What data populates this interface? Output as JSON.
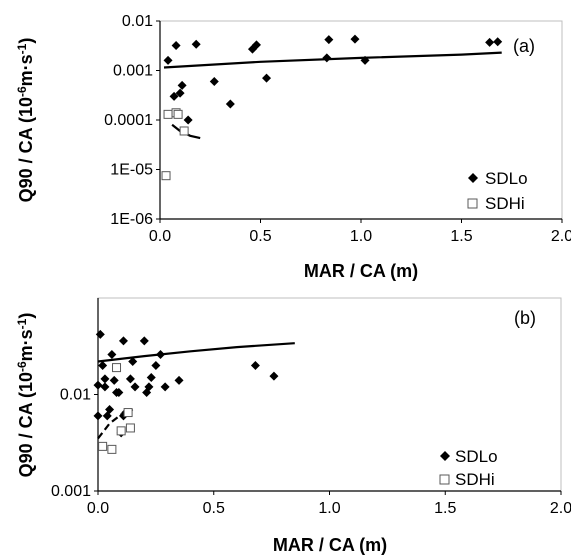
{
  "chart_data": [
    {
      "type": "scatter",
      "panel_label": "(a)",
      "xlabel": "MAR / CA (m)",
      "ylabel": "Q90 / CA (10",
      "ylabel_unit": "-6",
      "ylabel_mid": "m·s",
      "ylabel_exp": "-1",
      "ylabel_close": ")",
      "xlim": [
        0,
        2
      ],
      "ylim": [
        1e-06,
        0.01
      ],
      "yscale": "log",
      "x_ticks": [
        "0.0",
        "0.5",
        "1.0",
        "1.5",
        "2.0"
      ],
      "y_ticks": [
        "1E-06",
        "1E-05",
        "0.0001",
        "0.001",
        "0.01"
      ],
      "legend_position": "bottom-right",
      "series": [
        {
          "name": "SDLo",
          "marker": "diamond",
          "points": [
            [
              0.04,
              0.0016
            ],
            [
              0.07,
              0.0003
            ],
            [
              0.08,
              0.0032
            ],
            [
              0.1,
              0.00035
            ],
            [
              0.11,
              0.0005
            ],
            [
              0.14,
              0.0001
            ],
            [
              0.18,
              0.0034
            ],
            [
              0.27,
              0.0006
            ],
            [
              0.35,
              0.00021
            ],
            [
              0.46,
              0.0027
            ],
            [
              0.48,
              0.0033
            ],
            [
              0.53,
              0.0007
            ],
            [
              0.83,
              0.0018
            ],
            [
              0.84,
              0.0042
            ],
            [
              0.97,
              0.0043
            ],
            [
              1.02,
              0.0016
            ],
            [
              1.64,
              0.0037
            ],
            [
              1.68,
              0.0038
            ]
          ]
        },
        {
          "name": "SDHi",
          "marker": "square",
          "points": [
            [
              0.03,
              7.5e-06
            ],
            [
              0.04,
              0.00013
            ],
            [
              0.08,
              0.00014
            ],
            [
              0.09,
              0.00013
            ],
            [
              0.12,
              6e-05
            ]
          ]
        }
      ],
      "fit_lines": [
        {
          "series": "SDLo",
          "style": "solid",
          "points": [
            [
              0.02,
              0.00115
            ],
            [
              0.5,
              0.0015
            ],
            [
              1.0,
              0.0018
            ],
            [
              1.5,
              0.0021
            ],
            [
              1.7,
              0.0023
            ]
          ]
        },
        {
          "series": "SDHi",
          "style": "solid",
          "points": [
            [
              0.06,
              8e-05
            ],
            [
              0.1,
              6e-05
            ],
            [
              0.15,
              4.8e-05
            ],
            [
              0.2,
              4.3e-05
            ]
          ]
        }
      ]
    },
    {
      "type": "scatter",
      "panel_label": "(b)",
      "xlabel": "MAR / CA (m)",
      "ylabel": "Q90 / CA (10",
      "ylabel_unit": "-6",
      "ylabel_mid": "m·s",
      "ylabel_exp": "-1",
      "ylabel_close": ")",
      "xlim": [
        0,
        2
      ],
      "ylim": [
        0.001,
        0.1
      ],
      "yscale": "log",
      "x_ticks": [
        "0.0",
        "0.5",
        "1.0",
        "1.5",
        "2.0"
      ],
      "y_ticks": [
        "0.001",
        "0.01"
      ],
      "legend_position": "bottom-right",
      "series": [
        {
          "name": "SDLo",
          "marker": "diamond",
          "points": [
            [
              0.0,
              0.0125
            ],
            [
              0.0,
              0.006
            ],
            [
              0.01,
              0.042
            ],
            [
              0.02,
              0.02
            ],
            [
              0.03,
              0.0145
            ],
            [
              0.03,
              0.012
            ],
            [
              0.04,
              0.006
            ],
            [
              0.05,
              0.007
            ],
            [
              0.06,
              0.026
            ],
            [
              0.07,
              0.014
            ],
            [
              0.08,
              0.0105
            ],
            [
              0.09,
              0.0105
            ],
            [
              0.1,
              0.004
            ],
            [
              0.11,
              0.006
            ],
            [
              0.11,
              0.036
            ],
            [
              0.12,
              0.0065
            ],
            [
              0.14,
              0.0145
            ],
            [
              0.15,
              0.022
            ],
            [
              0.16,
              0.012
            ],
            [
              0.2,
              0.036
            ],
            [
              0.21,
              0.0105
            ],
            [
              0.22,
              0.012
            ],
            [
              0.23,
              0.015
            ],
            [
              0.25,
              0.02
            ],
            [
              0.27,
              0.026
            ],
            [
              0.29,
              0.012
            ],
            [
              0.35,
              0.014
            ],
            [
              0.68,
              0.02
            ],
            [
              0.76,
              0.0155
            ]
          ]
        },
        {
          "name": "SDHi",
          "marker": "square",
          "points": [
            [
              0.02,
              0.0029
            ],
            [
              0.06,
              0.0027
            ],
            [
              0.08,
              0.019
            ],
            [
              0.1,
              0.0042
            ],
            [
              0.13,
              0.0065
            ],
            [
              0.14,
              0.0045
            ]
          ]
        }
      ],
      "fit_lines": [
        {
          "series": "SDLo",
          "style": "solid",
          "points": [
            [
              0.0,
              0.022
            ],
            [
              0.2,
              0.025
            ],
            [
              0.4,
              0.028
            ],
            [
              0.6,
              0.031
            ],
            [
              0.85,
              0.034
            ]
          ]
        },
        {
          "series": "SDHi",
          "style": "dashed",
          "points": [
            [
              0.0,
              0.0035
            ],
            [
              0.05,
              0.005
            ],
            [
              0.1,
              0.0062
            ],
            [
              0.15,
              0.007
            ]
          ]
        }
      ]
    }
  ]
}
